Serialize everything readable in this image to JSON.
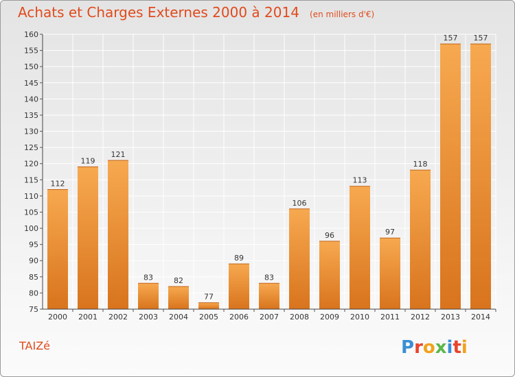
{
  "title": "Achats et Charges Externes 2000 à 2014",
  "unit_note": "(en milliers d'€)",
  "commune": "TAIZé",
  "logo_text": "Proxiti",
  "colors": {
    "title": "#e04a1c",
    "bar_top": "#f7a950",
    "bar_bottom": "#d8741d",
    "grid": "#ffffff"
  },
  "chart_data": {
    "type": "bar",
    "title": "Achats et Charges Externes 2000 à 2014",
    "subtitle": "(en milliers d'€)",
    "xlabel": "",
    "ylabel": "",
    "categories": [
      "2000",
      "2001",
      "2002",
      "2003",
      "2004",
      "2005",
      "2006",
      "2007",
      "2008",
      "2009",
      "2010",
      "2011",
      "2012",
      "2013",
      "2014"
    ],
    "values": [
      112,
      119,
      121,
      83,
      82,
      77,
      89,
      83,
      106,
      96,
      113,
      97,
      118,
      157,
      157
    ],
    "data_labels": [
      "112",
      "119",
      "121",
      "83",
      "82",
      "77",
      "89",
      "83",
      "106",
      "96",
      "113",
      "97",
      "118",
      "157",
      "157"
    ],
    "ylim": [
      75,
      160
    ],
    "yticks": [
      75,
      80,
      85,
      90,
      95,
      100,
      105,
      110,
      115,
      120,
      125,
      130,
      135,
      140,
      145,
      150,
      155,
      160
    ],
    "grid": true,
    "legend": "none"
  }
}
